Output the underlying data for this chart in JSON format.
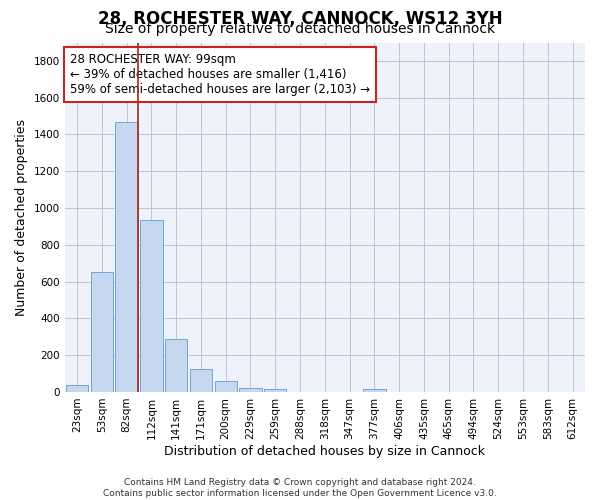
{
  "title1": "28, ROCHESTER WAY, CANNOCK, WS12 3YH",
  "title2": "Size of property relative to detached houses in Cannock",
  "xlabel": "Distribution of detached houses by size in Cannock",
  "ylabel": "Number of detached properties",
  "categories": [
    "23sqm",
    "53sqm",
    "82sqm",
    "112sqm",
    "141sqm",
    "171sqm",
    "200sqm",
    "229sqm",
    "259sqm",
    "288sqm",
    "318sqm",
    "347sqm",
    "377sqm",
    "406sqm",
    "435sqm",
    "465sqm",
    "494sqm",
    "524sqm",
    "553sqm",
    "583sqm",
    "612sqm"
  ],
  "values": [
    38,
    650,
    1470,
    935,
    290,
    125,
    62,
    22,
    14,
    0,
    0,
    0,
    14,
    0,
    0,
    0,
    0,
    0,
    0,
    0,
    0
  ],
  "bar_color": "#c5d8f0",
  "bar_edge_color": "#6699cc",
  "vline_color": "#aa2222",
  "annotation_text": "28 ROCHESTER WAY: 99sqm\n← 39% of detached houses are smaller (1,416)\n59% of semi-detached houses are larger (2,103) →",
  "annotation_box_color": "#cc2222",
  "ylim": [
    0,
    1900
  ],
  "yticks": [
    0,
    200,
    400,
    600,
    800,
    1000,
    1200,
    1400,
    1600,
    1800
  ],
  "grid_color": "#bbbbcc",
  "bg_color": "#eef2fa",
  "footer": "Contains HM Land Registry data © Crown copyright and database right 2024.\nContains public sector information licensed under the Open Government Licence v3.0.",
  "title1_fontsize": 12,
  "title2_fontsize": 10,
  "xlabel_fontsize": 9,
  "ylabel_fontsize": 9,
  "tick_fontsize": 7.5,
  "annotation_fontsize": 8.5,
  "footer_fontsize": 6.5
}
